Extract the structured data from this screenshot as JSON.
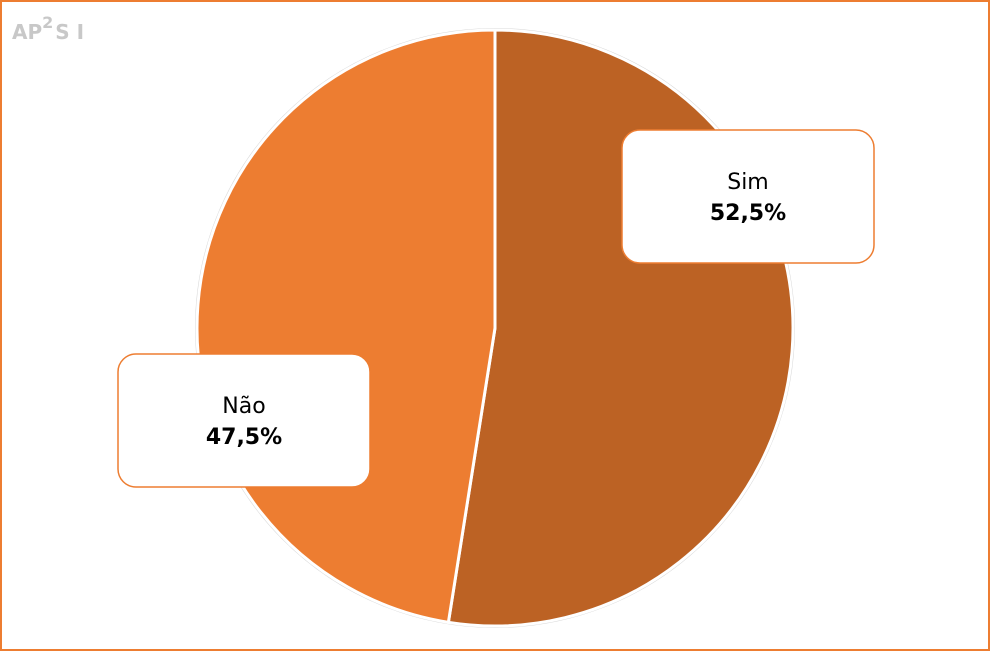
{
  "chart_data": {
    "type": "pie",
    "watermark": [
      "AP",
      "2",
      "S I"
    ],
    "categories": [
      "Sim",
      "Não"
    ],
    "values": [
      52.5,
      47.5
    ],
    "value_labels": [
      "52,5%",
      "47,5%"
    ],
    "colors": [
      "#bc6224",
      "#ed7d31"
    ]
  }
}
